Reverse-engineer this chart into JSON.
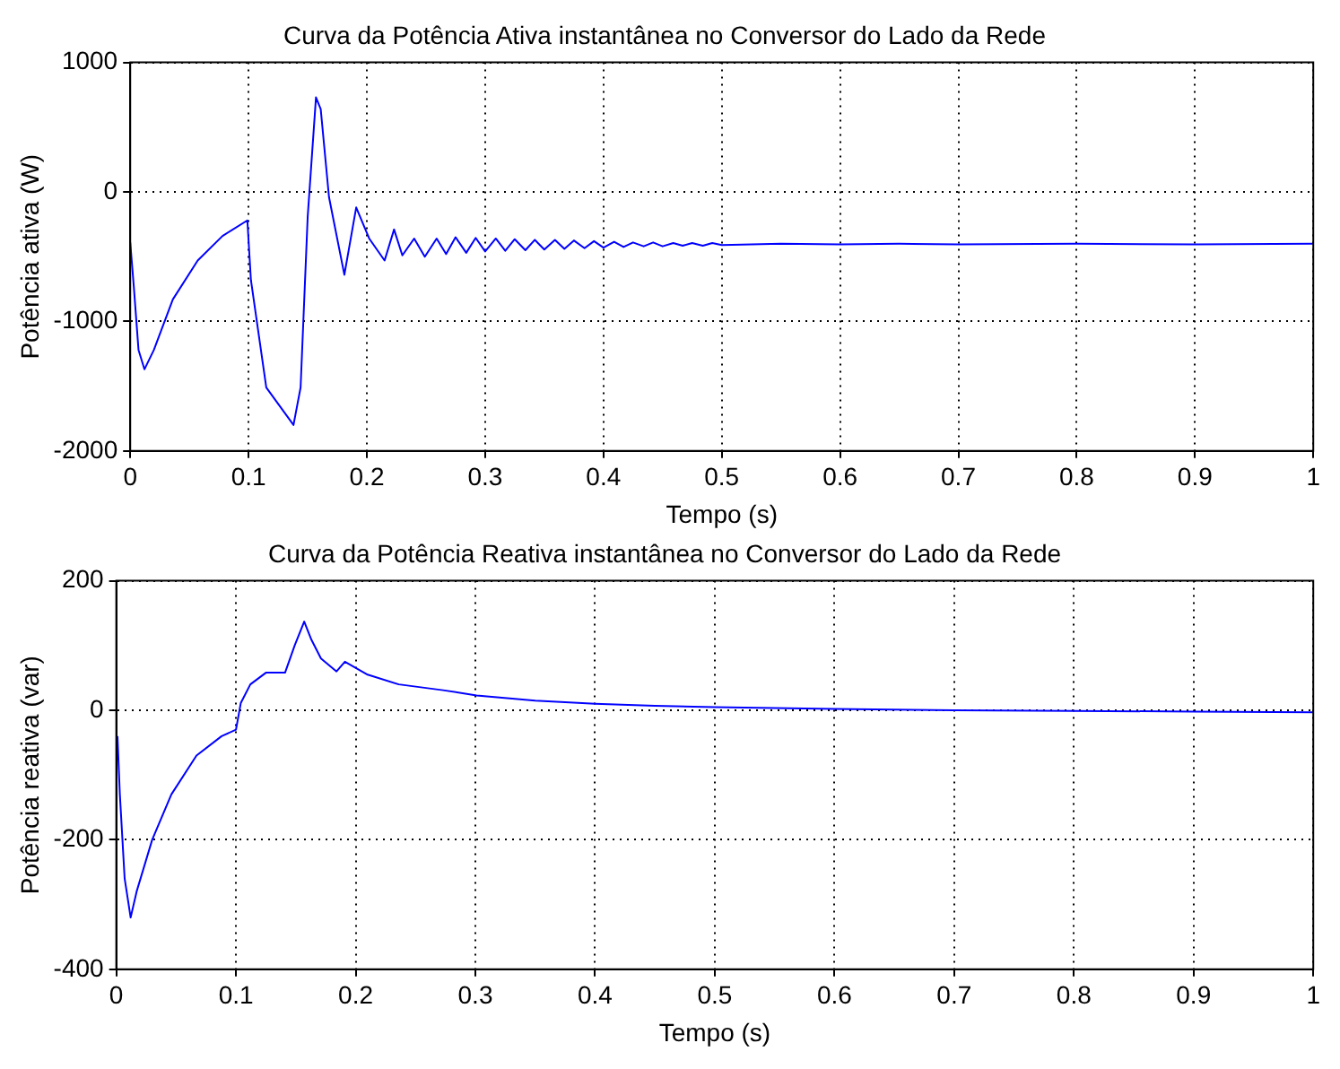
{
  "chart_data": [
    {
      "type": "line",
      "title": "Curva da Potência Ativa instantânea no Conversor do Lado da Rede",
      "xlabel": "Tempo (s)",
      "ylabel": "Potência ativa (W)",
      "color": "#0000ff",
      "grid": true,
      "xlim": [
        0,
        1
      ],
      "xticks": [
        0,
        0.1,
        0.2,
        0.3,
        0.4,
        0.5,
        0.6,
        0.7,
        0.8,
        0.9,
        1
      ],
      "ylim": [
        -2000,
        1000
      ],
      "yticks": [
        -2000,
        -1000,
        0,
        1000
      ],
      "x": [
        0,
        0.003,
        0.007,
        0.012,
        0.02,
        0.036,
        0.057,
        0.078,
        0.099,
        0.102,
        0.115,
        0.138,
        0.144,
        0.15,
        0.157,
        0.161,
        0.168,
        0.181,
        0.191,
        0.202,
        0.215,
        0.223,
        0.23,
        0.24,
        0.249,
        0.259,
        0.267,
        0.275,
        0.284,
        0.292,
        0.3,
        0.309,
        0.317,
        0.325,
        0.334,
        0.342,
        0.35,
        0.359,
        0.367,
        0.375,
        0.384,
        0.392,
        0.4,
        0.409,
        0.417,
        0.425,
        0.434,
        0.442,
        0.45,
        0.459,
        0.467,
        0.475,
        0.484,
        0.492,
        0.5,
        0.55,
        0.6,
        0.65,
        0.7,
        0.8,
        0.9,
        1
      ],
      "values": [
        -390,
        -730,
        -1220,
        -1370,
        -1220,
        -830,
        -530,
        -340,
        -220,
        -680,
        -1510,
        -1800,
        -1510,
        -190,
        730,
        640,
        -40,
        -640,
        -120,
        -360,
        -530,
        -290,
        -490,
        -360,
        -500,
        -360,
        -480,
        -350,
        -470,
        -355,
        -460,
        -360,
        -455,
        -365,
        -450,
        -370,
        -445,
        -370,
        -440,
        -375,
        -435,
        -380,
        -430,
        -385,
        -425,
        -390,
        -420,
        -390,
        -420,
        -395,
        -415,
        -395,
        -415,
        -395,
        -410,
        -400,
        -405,
        -400,
        -405,
        -400,
        -405,
        -400
      ]
    },
    {
      "type": "line",
      "title": "Curva da Potência Reativa instantânea no Conversor do Lado da Rede",
      "xlabel": "Tempo (s)",
      "ylabel": "Potência reativa (var)",
      "color": "#0000ff",
      "grid": true,
      "xlim": [
        0,
        1
      ],
      "xticks": [
        0,
        0.1,
        0.2,
        0.3,
        0.4,
        0.5,
        0.6,
        0.7,
        0.8,
        0.9,
        1
      ],
      "ylim": [
        -400,
        200
      ],
      "yticks": [
        -400,
        -200,
        0,
        200
      ],
      "x": [
        0.001,
        0.003,
        0.007,
        0.012,
        0.017,
        0.03,
        0.046,
        0.067,
        0.088,
        0.1,
        0.104,
        0.112,
        0.125,
        0.141,
        0.149,
        0.157,
        0.163,
        0.171,
        0.184,
        0.191,
        0.21,
        0.236,
        0.273,
        0.301,
        0.35,
        0.4,
        0.45,
        0.5,
        0.6,
        0.7,
        0.8,
        0.9,
        1
      ],
      "values": [
        -40,
        -130,
        -260,
        -320,
        -280,
        -200,
        -130,
        -70,
        -40,
        -30,
        11,
        40,
        58,
        58,
        100,
        137,
        109,
        80,
        60,
        75,
        55,
        40,
        31,
        23,
        15,
        10,
        7,
        5,
        2,
        0,
        -1,
        -2,
        -3
      ]
    }
  ]
}
